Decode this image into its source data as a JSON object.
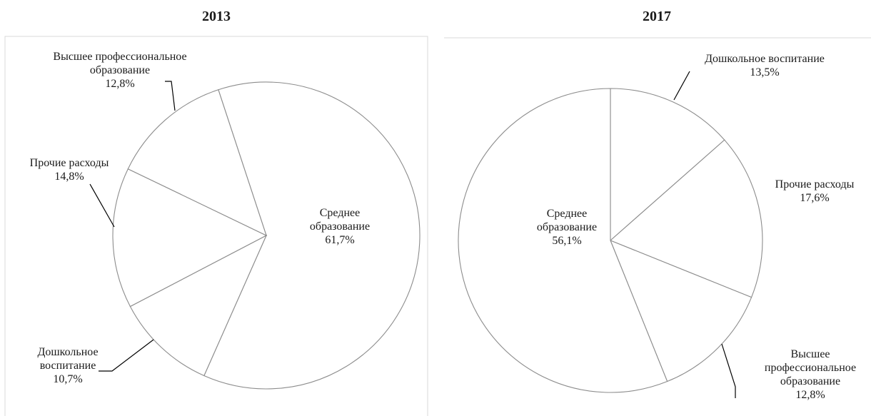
{
  "chart_data": [
    {
      "type": "pie",
      "title": "2013",
      "slices": [
        {
          "name": "Среднее образование",
          "label_lines": [
            "Среднее",
            "образование"
          ],
          "value": 61.7,
          "value_label": "61,7%"
        },
        {
          "name": "Дошкольное воспитание",
          "label_lines": [
            "Дошкольное",
            "воспитание"
          ],
          "value": 10.7,
          "value_label": "10,7%"
        },
        {
          "name": "Прочие расходы",
          "label_lines": [
            "Прочие расходы"
          ],
          "value": 14.8,
          "value_label": "14,8%"
        },
        {
          "name": "Высшее профессиональное образование",
          "label_lines": [
            "Высшее профессиональное",
            "образование"
          ],
          "value": 12.8,
          "value_label": "12,8%"
        }
      ]
    },
    {
      "type": "pie",
      "title": "2017",
      "slices": [
        {
          "name": "Дошкольное воспитание",
          "label_lines": [
            "Дошкольное воспитание"
          ],
          "value": 13.5,
          "value_label": "13,5%"
        },
        {
          "name": "Прочие расходы",
          "label_lines": [
            "Прочие расходы"
          ],
          "value": 17.6,
          "value_label": "17,6%"
        },
        {
          "name": "Высшее профессиональное образование",
          "label_lines": [
            "Высшее",
            "профессиональное",
            "образование"
          ],
          "value": 12.8,
          "value_label": "12,8%"
        },
        {
          "name": "Среднее образование",
          "label_lines": [
            "Среднее",
            "образование"
          ],
          "value": 56.1,
          "value_label": "56,1%"
        }
      ]
    }
  ]
}
